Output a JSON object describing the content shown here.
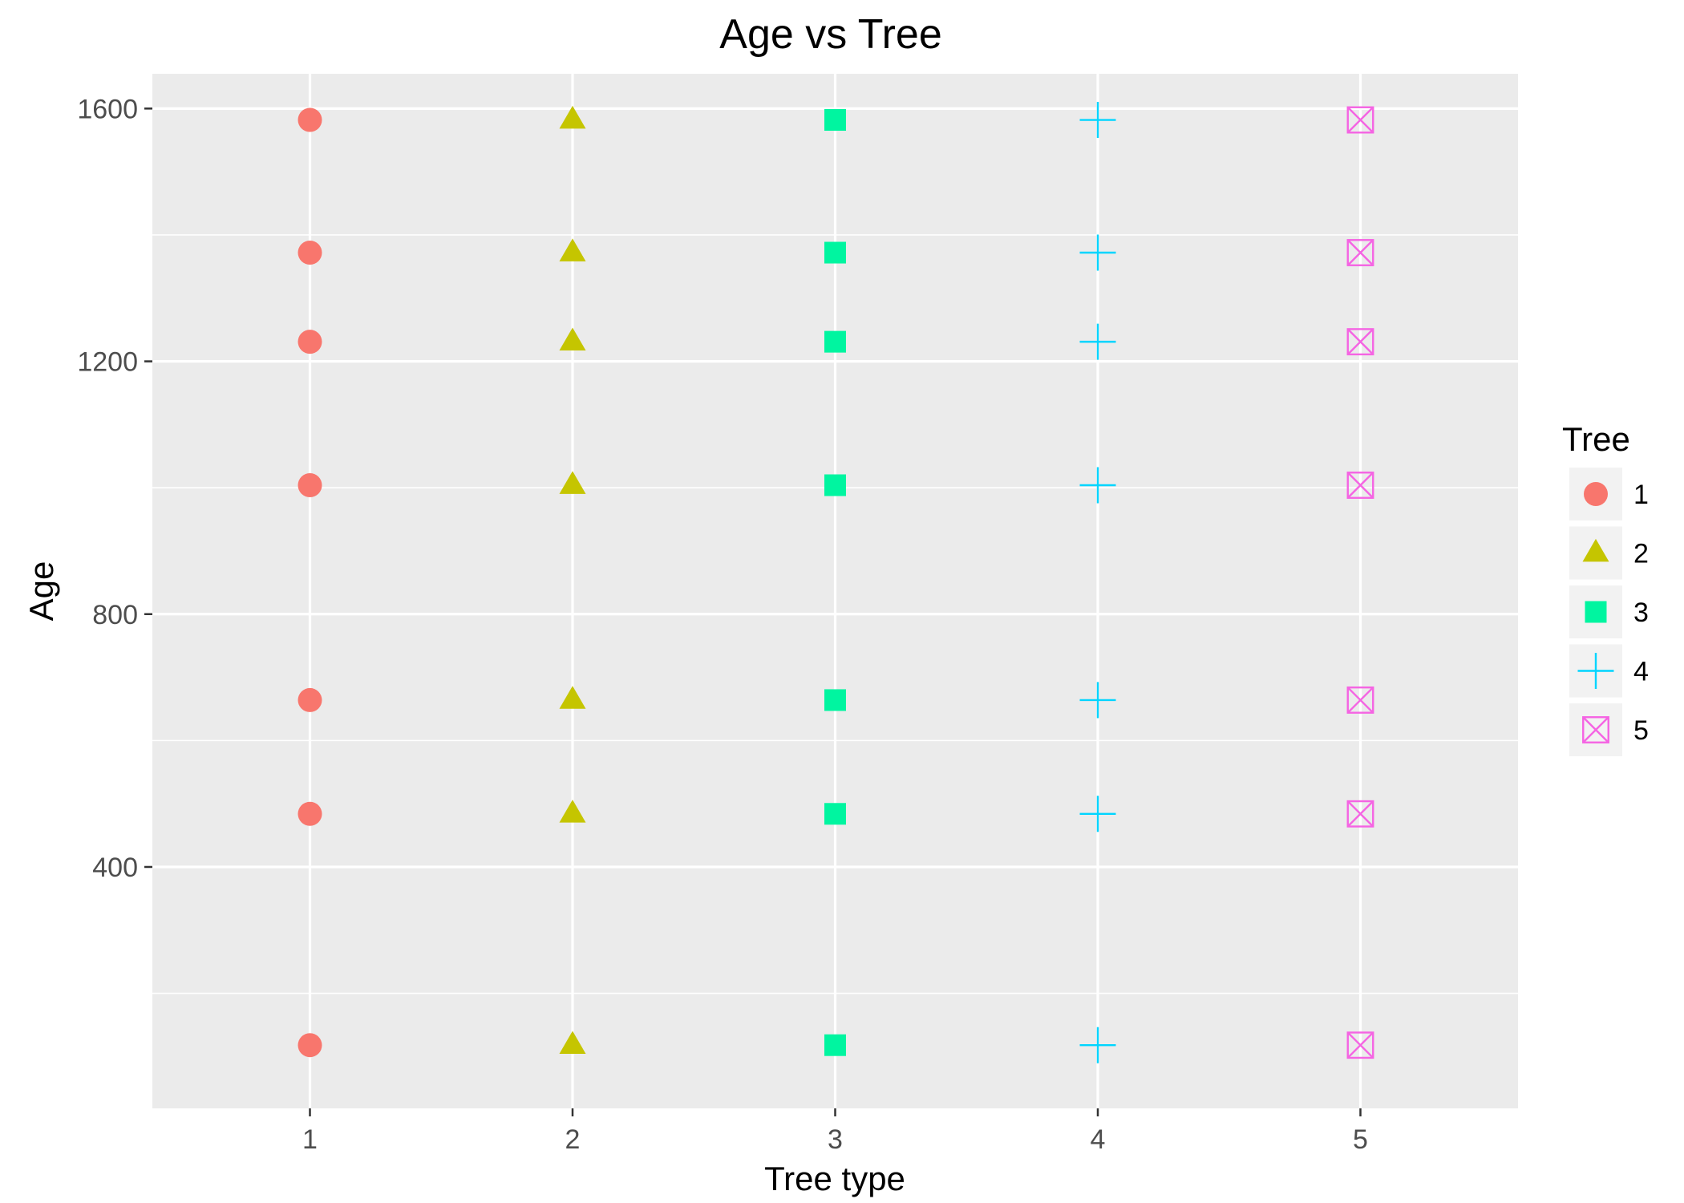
{
  "chart_data": {
    "type": "scatter",
    "title": "Age vs Tree",
    "xlabel": "Tree type",
    "ylabel": "Age",
    "x_ticks": [
      "1",
      "2",
      "3",
      "4",
      "5"
    ],
    "y_ticks": [
      "400",
      "800",
      "1200",
      "1600"
    ],
    "xlim": [
      0.4,
      5.6
    ],
    "ylim": [
      18,
      1655
    ],
    "grid": true,
    "legend": {
      "title": "Tree",
      "placement": "right"
    },
    "series": [
      {
        "name": "1",
        "shape": "circle",
        "color": "#F8766D",
        "x": [
          1,
          1,
          1,
          1,
          1,
          1,
          1
        ],
        "y": [
          118,
          484,
          664,
          1004,
          1231,
          1372,
          1582
        ]
      },
      {
        "name": "2",
        "shape": "triangle",
        "color": "#C5C500",
        "x": [
          2,
          2,
          2,
          2,
          2,
          2,
          2
        ],
        "y": [
          118,
          484,
          664,
          1004,
          1231,
          1372,
          1582
        ]
      },
      {
        "name": "3",
        "shape": "square",
        "color": "#00F5A0",
        "x": [
          3,
          3,
          3,
          3,
          3,
          3,
          3
        ],
        "y": [
          118,
          484,
          664,
          1004,
          1231,
          1372,
          1582
        ]
      },
      {
        "name": "4",
        "shape": "plus",
        "color": "#00D5FF",
        "x": [
          4,
          4,
          4,
          4,
          4,
          4,
          4
        ],
        "y": [
          118,
          484,
          664,
          1004,
          1231,
          1372,
          1582
        ]
      },
      {
        "name": "5",
        "shape": "boxed-x",
        "color": "#F564E3",
        "x": [
          5,
          5,
          5,
          5,
          5,
          5,
          5
        ],
        "y": [
          118,
          484,
          664,
          1004,
          1231,
          1372,
          1582
        ]
      }
    ]
  }
}
